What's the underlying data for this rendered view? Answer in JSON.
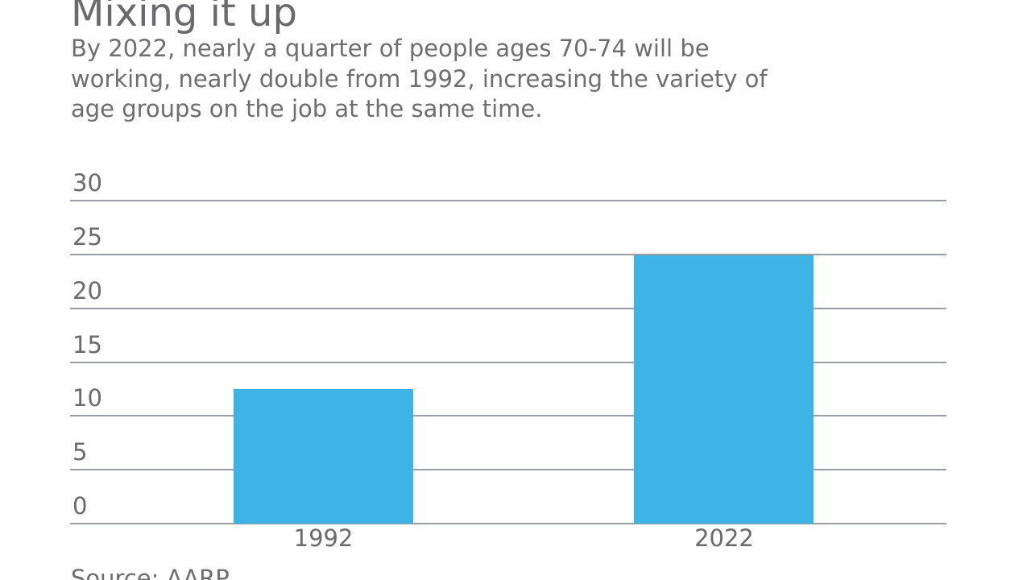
{
  "header": {
    "title": "Mixing it up",
    "subtitle_lines": [
      "By 2022, nearly a quarter of people ages 70-74 will be",
      "working, nearly double from 1992, increasing the variety of",
      "age groups on the job at the same time."
    ]
  },
  "footer": {
    "source": "Source: AARP"
  },
  "colors": {
    "bar": "#3db4e5",
    "grid": "#9b9ea1",
    "text": "#6b6b6b"
  },
  "chart_data": {
    "type": "bar",
    "title": "Mixing it up",
    "subtitle": "By 2022, nearly a quarter of people ages 70-74 will be working, nearly double from 1992, increasing the variety of age groups on the job at the same time.",
    "categories": [
      "1992",
      "2022"
    ],
    "values": [
      12.5,
      24.9
    ],
    "yticks": [
      0,
      5,
      10,
      15,
      20,
      25,
      30
    ],
    "ylim": [
      0,
      30
    ],
    "xlabel": "",
    "ylabel": "",
    "legend": "none",
    "grid": true,
    "source": "Source: AARP"
  }
}
